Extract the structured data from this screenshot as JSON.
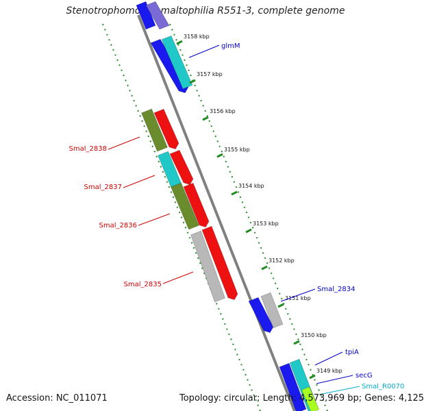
{
  "title": "Stenotrophomonas maltophilia R551-3, complete genome",
  "accession_label": "Accession: NC_011071",
  "topology_label": "Topology: circular; Length: 4,573,969 bp; Genes: 4,125",
  "colors": {
    "backbone": "#808080",
    "ticks": "#228b22",
    "forward_label": "#0000cc",
    "reverse_label": "#cc0000",
    "rna_label": "#00aacc"
  },
  "kbp_ticks": [
    "3158 kbp",
    "3157 kbp",
    "3156 kbp",
    "3155 kbp",
    "3154 kbp",
    "3153 kbp",
    "3152 kbp",
    "3151 kbp",
    "3150 kbp",
    "3149 kbp"
  ],
  "genes_right": [
    {
      "name": "glmM",
      "color": "#0000cc"
    },
    {
      "name": "Smal_2834",
      "color": "#0000cc"
    },
    {
      "name": "tpiA",
      "color": "#0000cc"
    },
    {
      "name": "secG",
      "color": "#0000cc"
    },
    {
      "name": "Smal_R0070",
      "color": "#00aacc"
    }
  ],
  "genes_left": [
    {
      "name": "Smal_2838",
      "color": "#cc0000"
    },
    {
      "name": "Smal_2837",
      "color": "#cc0000"
    },
    {
      "name": "Smal_2836",
      "color": "#cc0000"
    },
    {
      "name": "Smal_2835",
      "color": "#cc0000"
    }
  ]
}
